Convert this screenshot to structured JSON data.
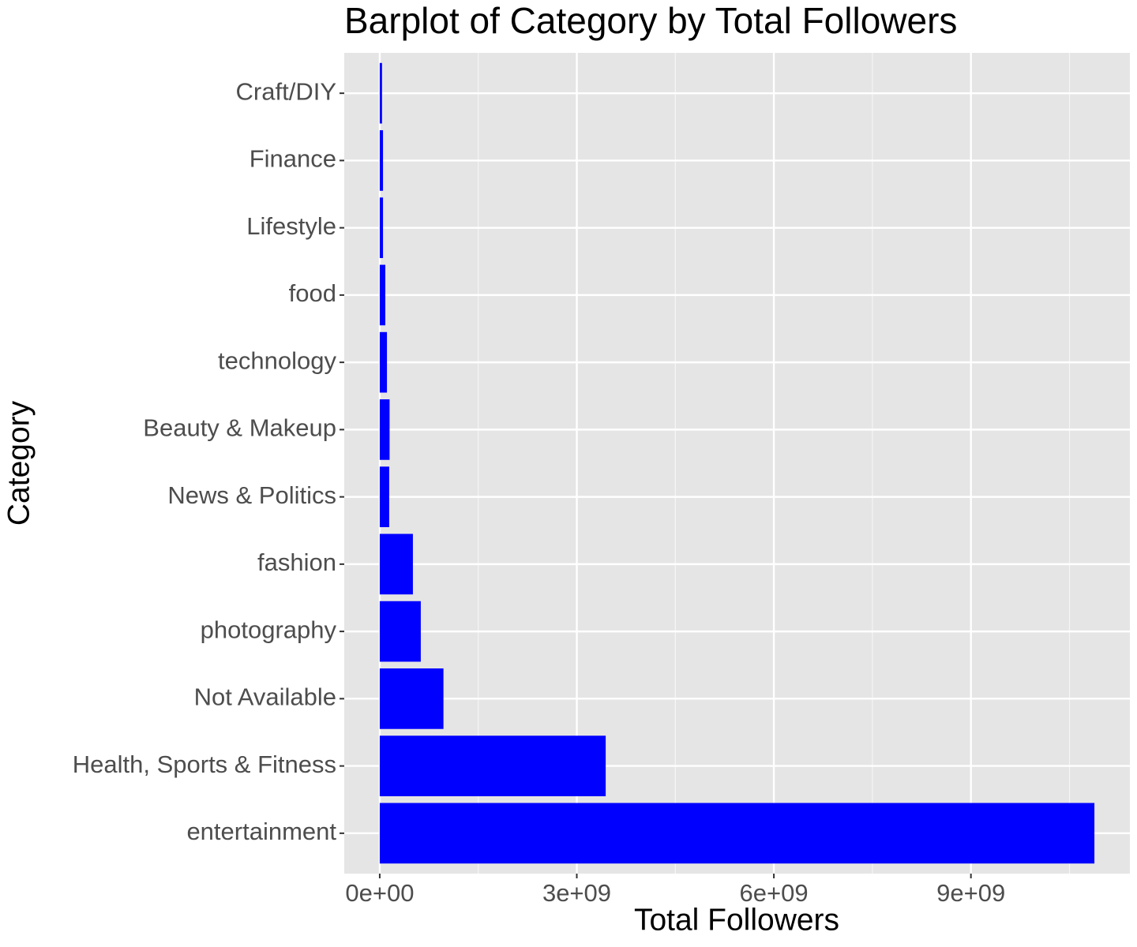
{
  "chart_data": {
    "type": "bar",
    "orientation": "horizontal",
    "title": "Barplot of Category by Total Followers",
    "x_label": "Total Followers",
    "y_label": "Category",
    "categories": [
      "Craft/DIY",
      "Finance",
      "Lifestyle",
      "food",
      "technology",
      "Beauty & Makeup",
      "News & Politics",
      "fashion",
      "photography",
      "Not Available",
      "Health, Sports & Fitness",
      "entertainment"
    ],
    "values": [
      35000000,
      50000000,
      50000000,
      85000000,
      110000000,
      150000000,
      144000000,
      505000000,
      625000000,
      970000000,
      3440000000,
      10880000000
    ],
    "color": "#0000ff",
    "xlim": [
      -540000000,
      11420000000
    ],
    "xticks": [
      {
        "value": 0,
        "label": "0e+00"
      },
      {
        "value": 3000000000,
        "label": "3e+09"
      },
      {
        "value": 6000000000,
        "label": "6e+09"
      },
      {
        "value": 9000000000,
        "label": "9e+09"
      }
    ],
    "xminorticks": [
      1500000000,
      4500000000,
      7500000000,
      10500000000
    ],
    "grid": true
  }
}
